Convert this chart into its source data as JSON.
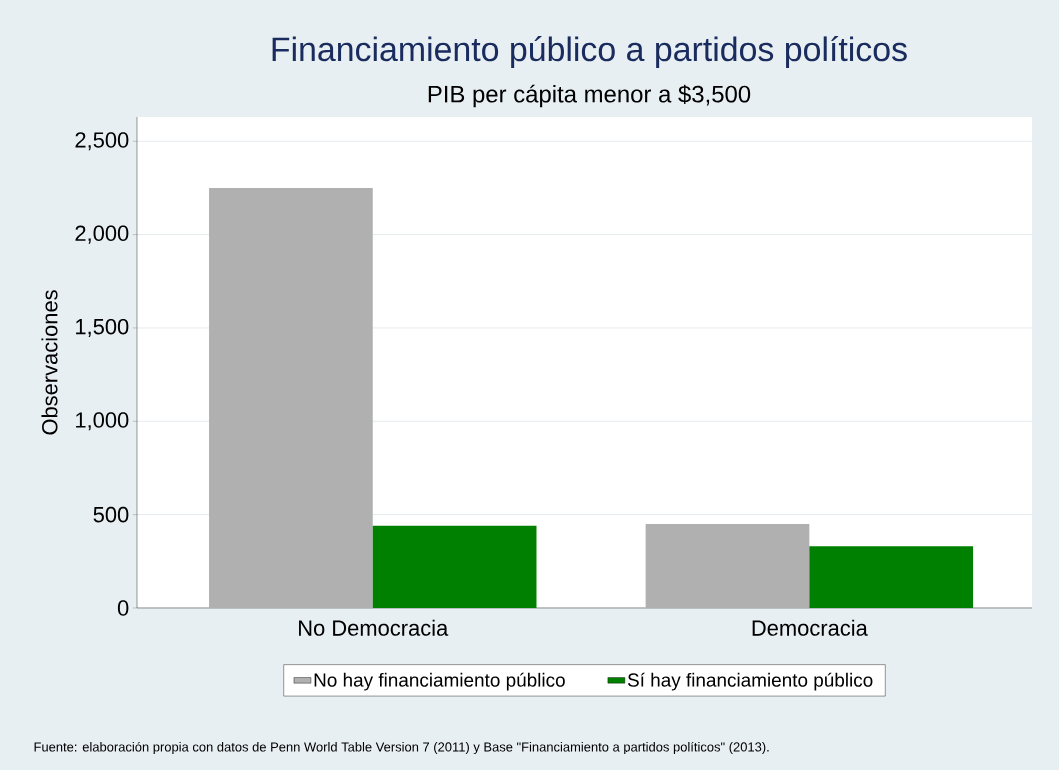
{
  "chart_data": {
    "type": "bar",
    "title": "Financiamiento público a partidos políticos",
    "subtitle": "PIB per cápita menor a $3,500",
    "ylabel": "Observaciones",
    "categories": [
      "No Democracia",
      "Democracia"
    ],
    "series": [
      {
        "name": "No hay financiamiento público",
        "color": "#b0b0b0",
        "values": [
          2250,
          450
        ]
      },
      {
        "name": "Sí hay financiamiento público",
        "color": "#008000",
        "values": [
          440,
          330
        ]
      }
    ],
    "ylim": [
      0,
      2630
    ],
    "yticks": [
      0,
      500,
      {
        "value": 1000,
        "label": "1,000"
      },
      {
        "value": 1500,
        "label": "1,500"
      },
      {
        "value": 2000,
        "label": "2,000"
      },
      {
        "value": 2500,
        "label": "2,500"
      }
    ],
    "grid": "y",
    "legend": "bottom",
    "annotations": [
      "Fuente: elaboración propia con datos de Penn World Table Version 7 (2011) y Base \"Financiamiento a partidos políticos\" (2013)."
    ]
  }
}
